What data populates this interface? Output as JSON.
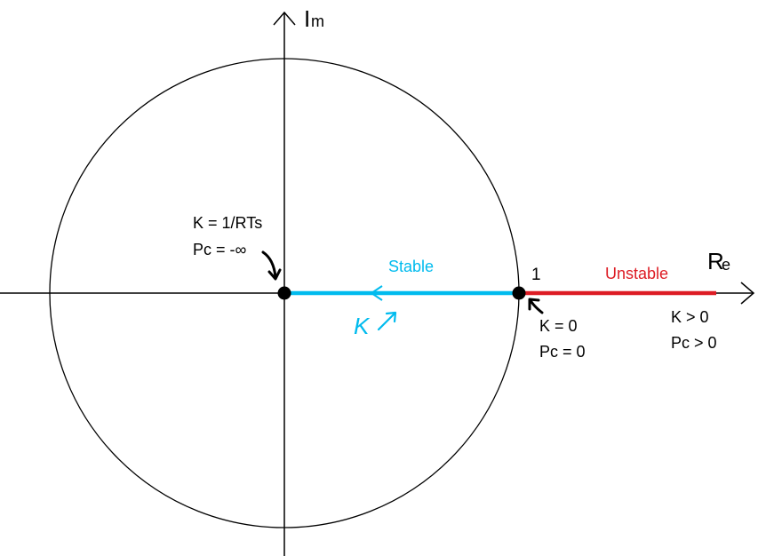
{
  "axes": {
    "imag_label_main": "I",
    "imag_label_sub": "m",
    "real_label_main": "R",
    "real_label_sub": "e"
  },
  "point_one_label": "1",
  "regions": {
    "stable_label": "Stable",
    "unstable_label": "Unstable",
    "stable_color": "#00bbee",
    "unstable_color": "#dd1c24"
  },
  "annotations": {
    "origin": {
      "line1": "K = 1/RTs",
      "line2": "Pc = -∞"
    },
    "unit_point": {
      "line1": "K = 0",
      "line2": "Pc = 0"
    },
    "unstable": {
      "line1": "K > 0",
      "line2": "Pc > 0"
    },
    "direction": "K"
  }
}
